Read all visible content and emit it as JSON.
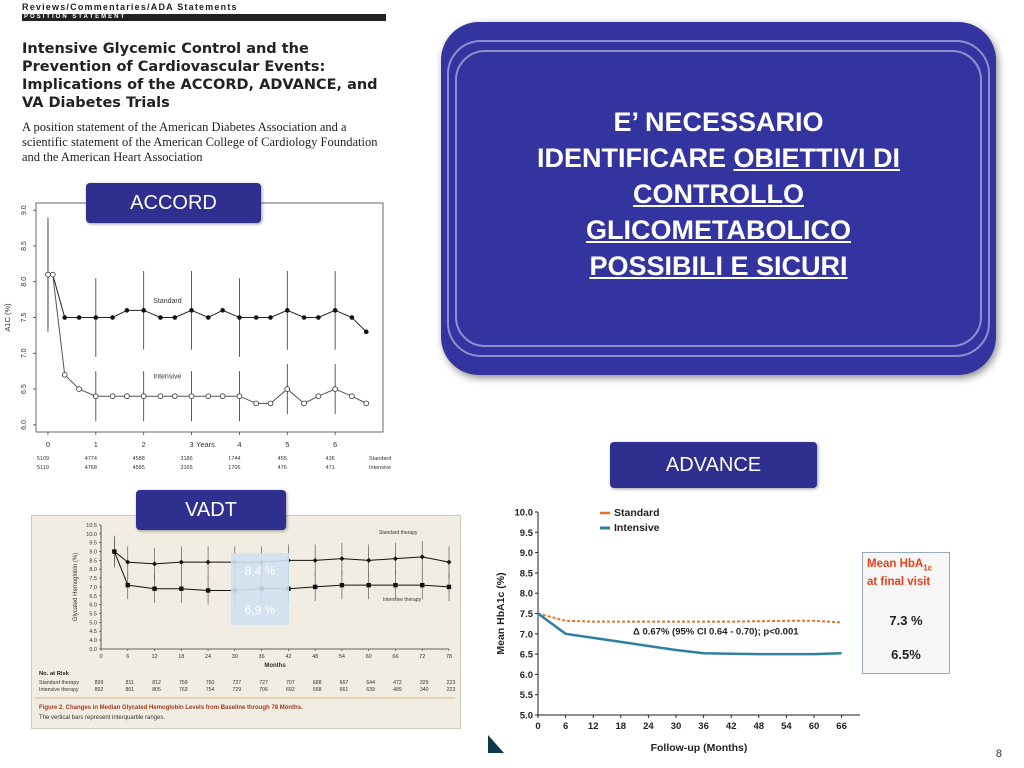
{
  "paper": {
    "header": "Reviews/Commentaries/ADA Statements",
    "bar": "POSITION STATEMENT",
    "title": "Intensive Glycemic Control and the Prevention of Cardiovascular Events: Implications of the ACCORD, ADVANCE, and VA Diabetes Trials",
    "subtitle": "A position statement of the American Diabetes Association and a scientific statement of the American College of Cardiology Foundation and the American Heart Association"
  },
  "callout": {
    "line1": "E’ NECESSARIO",
    "line2_plain": "IDENTIFICARE ",
    "line2_u": "OBIETTIVI DI",
    "line3": "CONTROLLO",
    "line4": "GLICOMETABOLICO",
    "line5": "POSSIBILI E SICURI"
  },
  "labels": {
    "accord": "ACCORD",
    "advance": "ADVANCE",
    "vadt": "VADT"
  },
  "page_number": "8",
  "colors": {
    "box_blue": "#2e2f8f",
    "callout_blue": "#3434a0",
    "advance_standard": "#e8732a",
    "advance_intensive": "#2f7fa3"
  },
  "chart_data": [
    {
      "id": "accord",
      "type": "line",
      "ylabel": "A1C (%)",
      "xlabel": "Years",
      "ylim": [
        6.0,
        9.0
      ],
      "yticks": [
        "6.0",
        "6.5",
        "7.0",
        "7.5",
        "8.0",
        "8.5",
        "9.0"
      ],
      "xticks": [
        "0",
        "1",
        "2",
        "3",
        "4",
        "5",
        "6"
      ],
      "series": [
        {
          "name": "Standard",
          "x": [
            0,
            0.1,
            0.35,
            0.65,
            1,
            1.35,
            1.65,
            2,
            2.35,
            2.65,
            3,
            3.35,
            3.65,
            4,
            4.35,
            4.65,
            5,
            5.35,
            5.65,
            6,
            6.35,
            6.65
          ],
          "y": [
            8.1,
            8.1,
            7.5,
            7.5,
            7.5,
            7.5,
            7.6,
            7.6,
            7.5,
            7.5,
            7.6,
            7.5,
            7.6,
            7.5,
            7.5,
            7.5,
            7.6,
            7.5,
            7.5,
            7.6,
            7.5,
            7.3
          ]
        },
        {
          "name": "Intensive",
          "x": [
            0,
            0.1,
            0.35,
            0.65,
            1,
            1.35,
            1.65,
            2,
            2.35,
            2.65,
            3,
            3.35,
            3.65,
            4,
            4.35,
            4.65,
            5,
            5.35,
            5.65,
            6,
            6.35,
            6.65
          ],
          "y": [
            8.1,
            8.1,
            6.7,
            6.5,
            6.4,
            6.4,
            6.4,
            6.4,
            6.4,
            6.4,
            6.4,
            6.4,
            6.4,
            6.4,
            6.3,
            6.3,
            6.5,
            6.3,
            6.4,
            6.5,
            6.4,
            6.3
          ]
        }
      ],
      "risk_table": {
        "standard": [
          "5109",
          "4774",
          "4588",
          "3186",
          "1744",
          "455",
          "436"
        ],
        "intensive": [
          "5119",
          "4768",
          "4585",
          "3165",
          "1706",
          "476",
          "471"
        ],
        "row_labels": [
          "Standard",
          "Intensive"
        ]
      }
    },
    {
      "id": "vadt",
      "type": "line",
      "ylabel": "Glycated Hemoglobin (%)",
      "xlabel": "Months",
      "ylim": [
        0.0,
        10.5
      ],
      "yticks": [
        "0.0",
        "4.0",
        "4.5",
        "5.0",
        "5.5",
        "6.0",
        "6.5",
        "7.0",
        "7.5",
        "8.0",
        "8.5",
        "9.0",
        "9.5",
        "10.0",
        "10.5"
      ],
      "xticks": [
        "0",
        "6",
        "12",
        "18",
        "24",
        "30",
        "36",
        "42",
        "48",
        "54",
        "60",
        "66",
        "72",
        "78"
      ],
      "series": [
        {
          "name": "Standard therapy",
          "x": [
            3,
            6,
            12,
            18,
            24,
            30,
            36,
            42,
            48,
            54,
            60,
            66,
            72,
            78
          ],
          "y": [
            9.0,
            8.4,
            8.3,
            8.4,
            8.4,
            8.4,
            8.4,
            8.5,
            8.5,
            8.6,
            8.5,
            8.6,
            8.7,
            8.4
          ]
        },
        {
          "name": "Intensive therapy",
          "x": [
            3,
            6,
            12,
            18,
            24,
            30,
            36,
            42,
            48,
            54,
            60,
            66,
            72,
            78
          ],
          "y": [
            9.0,
            7.1,
            6.9,
            6.9,
            6.8,
            6.8,
            6.9,
            6.9,
            7.0,
            7.1,
            7.1,
            7.1,
            7.1,
            7.0
          ]
        }
      ],
      "risk_header": "No. at Risk",
      "risk_table": {
        "standard_label": "Standard therapy",
        "standard": [
          "899",
          "811",
          "812",
          "759",
          "760",
          "727",
          "727",
          "707",
          "688",
          "667",
          "644",
          "472",
          "329",
          "223"
        ],
        "intensive_label": "Intensive therapy",
        "intensive": [
          "892",
          "801",
          "805",
          "763",
          "754",
          "729",
          "706",
          "692",
          "668",
          "661",
          "639",
          "489",
          "340",
          "223"
        ]
      },
      "overlay_values": [
        "8,4 %",
        "6,9 %"
      ],
      "caption_bold": "Figure 2. Changes in Median Glycated Hemoglobin Levels from Baseline through 78 Months.",
      "caption": "The vertical bars represent interquartile ranges."
    },
    {
      "id": "advance",
      "type": "line",
      "ylabel": "Mean HbA1c (%)",
      "xlabel": "Follow-up (Months)",
      "ylim": [
        5.0,
        10.0
      ],
      "yticks": [
        "5.0",
        "5.5",
        "6.0",
        "6.5",
        "7.0",
        "7.5",
        "8.0",
        "8.5",
        "9.0",
        "9.5",
        "10.0"
      ],
      "xticks": [
        "0",
        "6",
        "12",
        "18",
        "24",
        "30",
        "36",
        "42",
        "48",
        "54",
        "60",
        "66"
      ],
      "series": [
        {
          "name": "Standard",
          "x": [
            0,
            6,
            12,
            18,
            24,
            30,
            36,
            42,
            48,
            54,
            60,
            66
          ],
          "y": [
            7.5,
            7.32,
            7.3,
            7.3,
            7.3,
            7.3,
            7.3,
            7.3,
            7.31,
            7.32,
            7.32,
            7.28
          ]
        },
        {
          "name": "Intensive",
          "x": [
            0,
            6,
            12,
            18,
            24,
            30,
            36,
            42,
            48,
            54,
            60,
            66
          ],
          "y": [
            7.5,
            7.0,
            6.9,
            6.8,
            6.7,
            6.6,
            6.52,
            6.51,
            6.5,
            6.5,
            6.5,
            6.52
          ]
        }
      ],
      "annotation": "Δ  0.67%  (95% CI 0.64 - 0.70); p<0.001",
      "mean_box": {
        "title": "Mean HbA",
        "title_sub": "1c",
        "title2": "at final visit",
        "standard": "7.3 %",
        "intensive": "6.5%"
      }
    }
  ]
}
